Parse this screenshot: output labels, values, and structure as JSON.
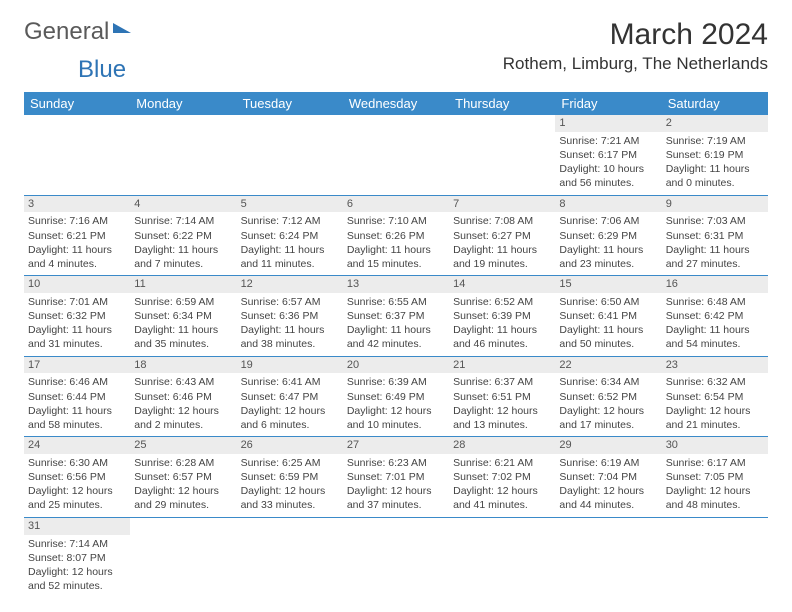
{
  "brand": {
    "name1": "General",
    "name2": "Blue"
  },
  "title": "March 2024",
  "location": "Rothem, Limburg, The Netherlands",
  "colors": {
    "header_bg": "#3a8ac9",
    "header_fg": "#ffffff",
    "daynum_bg": "#ececec",
    "row_divider": "#3a8ac9",
    "accent": "#2e74b5"
  },
  "fonts": {
    "title_pt": 30,
    "location_pt": 17,
    "th_pt": 13,
    "cell_pt": 10.5
  },
  "weekdays": [
    "Sunday",
    "Monday",
    "Tuesday",
    "Wednesday",
    "Thursday",
    "Friday",
    "Saturday"
  ],
  "weeks": [
    [
      {
        "n": "",
        "sr": "",
        "ss": "",
        "dl": ""
      },
      {
        "n": "",
        "sr": "",
        "ss": "",
        "dl": ""
      },
      {
        "n": "",
        "sr": "",
        "ss": "",
        "dl": ""
      },
      {
        "n": "",
        "sr": "",
        "ss": "",
        "dl": ""
      },
      {
        "n": "",
        "sr": "",
        "ss": "",
        "dl": ""
      },
      {
        "n": "1",
        "sr": "Sunrise: 7:21 AM",
        "ss": "Sunset: 6:17 PM",
        "dl": "Daylight: 10 hours and 56 minutes."
      },
      {
        "n": "2",
        "sr": "Sunrise: 7:19 AM",
        "ss": "Sunset: 6:19 PM",
        "dl": "Daylight: 11 hours and 0 minutes."
      }
    ],
    [
      {
        "n": "3",
        "sr": "Sunrise: 7:16 AM",
        "ss": "Sunset: 6:21 PM",
        "dl": "Daylight: 11 hours and 4 minutes."
      },
      {
        "n": "4",
        "sr": "Sunrise: 7:14 AM",
        "ss": "Sunset: 6:22 PM",
        "dl": "Daylight: 11 hours and 7 minutes."
      },
      {
        "n": "5",
        "sr": "Sunrise: 7:12 AM",
        "ss": "Sunset: 6:24 PM",
        "dl": "Daylight: 11 hours and 11 minutes."
      },
      {
        "n": "6",
        "sr": "Sunrise: 7:10 AM",
        "ss": "Sunset: 6:26 PM",
        "dl": "Daylight: 11 hours and 15 minutes."
      },
      {
        "n": "7",
        "sr": "Sunrise: 7:08 AM",
        "ss": "Sunset: 6:27 PM",
        "dl": "Daylight: 11 hours and 19 minutes."
      },
      {
        "n": "8",
        "sr": "Sunrise: 7:06 AM",
        "ss": "Sunset: 6:29 PM",
        "dl": "Daylight: 11 hours and 23 minutes."
      },
      {
        "n": "9",
        "sr": "Sunrise: 7:03 AM",
        "ss": "Sunset: 6:31 PM",
        "dl": "Daylight: 11 hours and 27 minutes."
      }
    ],
    [
      {
        "n": "10",
        "sr": "Sunrise: 7:01 AM",
        "ss": "Sunset: 6:32 PM",
        "dl": "Daylight: 11 hours and 31 minutes."
      },
      {
        "n": "11",
        "sr": "Sunrise: 6:59 AM",
        "ss": "Sunset: 6:34 PM",
        "dl": "Daylight: 11 hours and 35 minutes."
      },
      {
        "n": "12",
        "sr": "Sunrise: 6:57 AM",
        "ss": "Sunset: 6:36 PM",
        "dl": "Daylight: 11 hours and 38 minutes."
      },
      {
        "n": "13",
        "sr": "Sunrise: 6:55 AM",
        "ss": "Sunset: 6:37 PM",
        "dl": "Daylight: 11 hours and 42 minutes."
      },
      {
        "n": "14",
        "sr": "Sunrise: 6:52 AM",
        "ss": "Sunset: 6:39 PM",
        "dl": "Daylight: 11 hours and 46 minutes."
      },
      {
        "n": "15",
        "sr": "Sunrise: 6:50 AM",
        "ss": "Sunset: 6:41 PM",
        "dl": "Daylight: 11 hours and 50 minutes."
      },
      {
        "n": "16",
        "sr": "Sunrise: 6:48 AM",
        "ss": "Sunset: 6:42 PM",
        "dl": "Daylight: 11 hours and 54 minutes."
      }
    ],
    [
      {
        "n": "17",
        "sr": "Sunrise: 6:46 AM",
        "ss": "Sunset: 6:44 PM",
        "dl": "Daylight: 11 hours and 58 minutes."
      },
      {
        "n": "18",
        "sr": "Sunrise: 6:43 AM",
        "ss": "Sunset: 6:46 PM",
        "dl": "Daylight: 12 hours and 2 minutes."
      },
      {
        "n": "19",
        "sr": "Sunrise: 6:41 AM",
        "ss": "Sunset: 6:47 PM",
        "dl": "Daylight: 12 hours and 6 minutes."
      },
      {
        "n": "20",
        "sr": "Sunrise: 6:39 AM",
        "ss": "Sunset: 6:49 PM",
        "dl": "Daylight: 12 hours and 10 minutes."
      },
      {
        "n": "21",
        "sr": "Sunrise: 6:37 AM",
        "ss": "Sunset: 6:51 PM",
        "dl": "Daylight: 12 hours and 13 minutes."
      },
      {
        "n": "22",
        "sr": "Sunrise: 6:34 AM",
        "ss": "Sunset: 6:52 PM",
        "dl": "Daylight: 12 hours and 17 minutes."
      },
      {
        "n": "23",
        "sr": "Sunrise: 6:32 AM",
        "ss": "Sunset: 6:54 PM",
        "dl": "Daylight: 12 hours and 21 minutes."
      }
    ],
    [
      {
        "n": "24",
        "sr": "Sunrise: 6:30 AM",
        "ss": "Sunset: 6:56 PM",
        "dl": "Daylight: 12 hours and 25 minutes."
      },
      {
        "n": "25",
        "sr": "Sunrise: 6:28 AM",
        "ss": "Sunset: 6:57 PM",
        "dl": "Daylight: 12 hours and 29 minutes."
      },
      {
        "n": "26",
        "sr": "Sunrise: 6:25 AM",
        "ss": "Sunset: 6:59 PM",
        "dl": "Daylight: 12 hours and 33 minutes."
      },
      {
        "n": "27",
        "sr": "Sunrise: 6:23 AM",
        "ss": "Sunset: 7:01 PM",
        "dl": "Daylight: 12 hours and 37 minutes."
      },
      {
        "n": "28",
        "sr": "Sunrise: 6:21 AM",
        "ss": "Sunset: 7:02 PM",
        "dl": "Daylight: 12 hours and 41 minutes."
      },
      {
        "n": "29",
        "sr": "Sunrise: 6:19 AM",
        "ss": "Sunset: 7:04 PM",
        "dl": "Daylight: 12 hours and 44 minutes."
      },
      {
        "n": "30",
        "sr": "Sunrise: 6:17 AM",
        "ss": "Sunset: 7:05 PM",
        "dl": "Daylight: 12 hours and 48 minutes."
      }
    ],
    [
      {
        "n": "31",
        "sr": "Sunrise: 7:14 AM",
        "ss": "Sunset: 8:07 PM",
        "dl": "Daylight: 12 hours and 52 minutes."
      },
      {
        "n": "",
        "sr": "",
        "ss": "",
        "dl": ""
      },
      {
        "n": "",
        "sr": "",
        "ss": "",
        "dl": ""
      },
      {
        "n": "",
        "sr": "",
        "ss": "",
        "dl": ""
      },
      {
        "n": "",
        "sr": "",
        "ss": "",
        "dl": ""
      },
      {
        "n": "",
        "sr": "",
        "ss": "",
        "dl": ""
      },
      {
        "n": "",
        "sr": "",
        "ss": "",
        "dl": ""
      }
    ]
  ]
}
